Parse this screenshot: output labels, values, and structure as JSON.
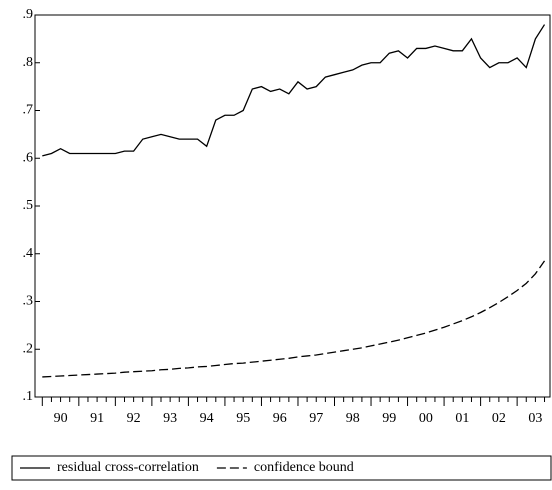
{
  "chart_data": {
    "type": "line",
    "x": [
      1990,
      1990.25,
      1990.5,
      1990.75,
      1991,
      1991.25,
      1991.5,
      1991.75,
      1992,
      1992.25,
      1992.5,
      1992.75,
      1993,
      1993.25,
      1993.5,
      1993.75,
      1994,
      1994.25,
      1994.5,
      1994.75,
      1995,
      1995.25,
      1995.5,
      1995.75,
      1996,
      1996.25,
      1996.5,
      1996.75,
      1997,
      1997.25,
      1997.5,
      1997.75,
      1998,
      1998.25,
      1998.5,
      1998.75,
      1999,
      1999.25,
      1999.5,
      1999.75,
      2000,
      2000.25,
      2000.5,
      2000.75,
      2001,
      2001.25,
      2001.5,
      2001.75,
      2002,
      2002.25,
      2002.5,
      2002.75,
      2003,
      2003.25,
      2003.5,
      2003.75
    ],
    "series": [
      {
        "name": "residual cross-correlation",
        "color": "#000000",
        "dash": "solid",
        "values": [
          0.605,
          0.61,
          0.62,
          0.61,
          0.61,
          0.61,
          0.61,
          0.61,
          0.61,
          0.615,
          0.615,
          0.64,
          0.645,
          0.65,
          0.645,
          0.64,
          0.64,
          0.64,
          0.625,
          0.68,
          0.69,
          0.69,
          0.7,
          0.745,
          0.75,
          0.74,
          0.745,
          0.735,
          0.76,
          0.745,
          0.75,
          0.77,
          0.775,
          0.78,
          0.785,
          0.795,
          0.8,
          0.8,
          0.82,
          0.825,
          0.81,
          0.83,
          0.83,
          0.835,
          0.83,
          0.825,
          0.825,
          0.85,
          0.81,
          0.79,
          0.8,
          0.8,
          0.81,
          0.79,
          0.85,
          0.88
        ]
      },
      {
        "name": "confidence bound",
        "color": "#000000",
        "dash": "dashed",
        "values": [
          0.142,
          0.143,
          0.144,
          0.145,
          0.146,
          0.147,
          0.148,
          0.149,
          0.15,
          0.152,
          0.153,
          0.154,
          0.155,
          0.157,
          0.158,
          0.16,
          0.161,
          0.163,
          0.164,
          0.166,
          0.168,
          0.17,
          0.171,
          0.173,
          0.175,
          0.177,
          0.179,
          0.181,
          0.184,
          0.186,
          0.188,
          0.191,
          0.194,
          0.197,
          0.2,
          0.203,
          0.207,
          0.211,
          0.215,
          0.219,
          0.224,
          0.229,
          0.234,
          0.24,
          0.246,
          0.253,
          0.26,
          0.268,
          0.277,
          0.287,
          0.298,
          0.31,
          0.323,
          0.338,
          0.358,
          0.385
        ]
      }
    ],
    "xlim": [
      1989.8,
      2003.9
    ],
    "xticks": [
      {
        "value": 1990,
        "label": "90"
      },
      {
        "value": 1991,
        "label": "91"
      },
      {
        "value": 1992,
        "label": "92"
      },
      {
        "value": 1993,
        "label": "93"
      },
      {
        "value": 1994,
        "label": "94"
      },
      {
        "value": 1995,
        "label": "95"
      },
      {
        "value": 1996,
        "label": "96"
      },
      {
        "value": 1997,
        "label": "97"
      },
      {
        "value": 1998,
        "label": "98"
      },
      {
        "value": 1999,
        "label": "99"
      },
      {
        "value": 2000,
        "label": "00"
      },
      {
        "value": 2001,
        "label": "01"
      },
      {
        "value": 2002,
        "label": "02"
      },
      {
        "value": 2003,
        "label": "03"
      }
    ],
    "ylim": [
      0.1,
      0.9
    ],
    "yticks": [
      {
        "value": 0.1,
        "label": ".1"
      },
      {
        "value": 0.2,
        "label": ".2"
      },
      {
        "value": 0.3,
        "label": ".3"
      },
      {
        "value": 0.4,
        "label": ".4"
      },
      {
        "value": 0.5,
        "label": ".5"
      },
      {
        "value": 0.6,
        "label": ".6"
      },
      {
        "value": 0.7,
        "label": ".7"
      },
      {
        "value": 0.8,
        "label": ".8"
      },
      {
        "value": 0.9,
        "label": ".9"
      }
    ],
    "grid": false,
    "legend": "bottom"
  }
}
